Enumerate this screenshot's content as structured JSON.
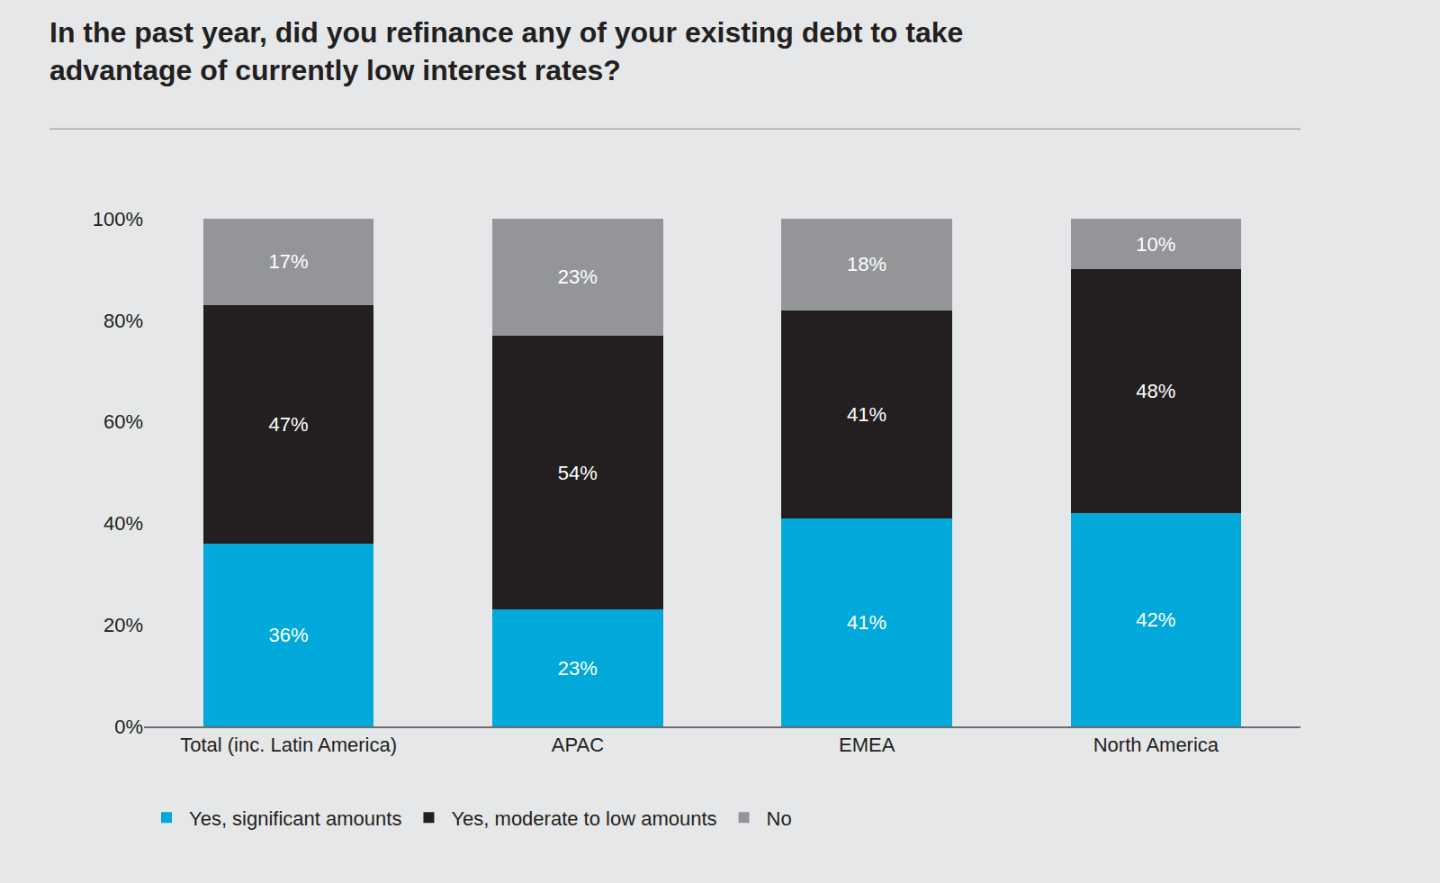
{
  "chart_data": {
    "type": "bar",
    "title": "In the past year, did you refinance any of your existing debt to take advantage of currently low interest rates?",
    "categories": [
      "Total (inc. Latin America)",
      "APAC",
      "EMEA",
      "North America"
    ],
    "series": [
      {
        "name": "Yes, significant amounts",
        "color": "#00a9d9",
        "values": [
          36,
          23,
          41,
          42
        ],
        "value_labels": [
          "36%",
          "23%",
          "41%",
          "42%"
        ]
      },
      {
        "name": "Yes, moderate to low amounts",
        "color": "#231f20",
        "values": [
          47,
          54,
          41,
          48
        ],
        "value_labels": [
          "47%",
          "54%",
          "41%",
          "48%"
        ]
      },
      {
        "name": "No",
        "color": "#939598",
        "values": [
          17,
          23,
          18,
          10
        ],
        "value_labels": [
          "17%",
          "23%",
          "18%",
          "10%"
        ]
      }
    ],
    "ylim": [
      0,
      100
    ],
    "yticks": [
      {
        "value": 0,
        "label": "0%"
      },
      {
        "value": 20,
        "label": "20%"
      },
      {
        "value": 40,
        "label": "40%"
      },
      {
        "value": 60,
        "label": "60%"
      },
      {
        "value": 80,
        "label": "80%"
      },
      {
        "value": 100,
        "label": "100%"
      }
    ],
    "stacked": true,
    "data_labels": true,
    "grid": false,
    "legend": "bottom"
  }
}
